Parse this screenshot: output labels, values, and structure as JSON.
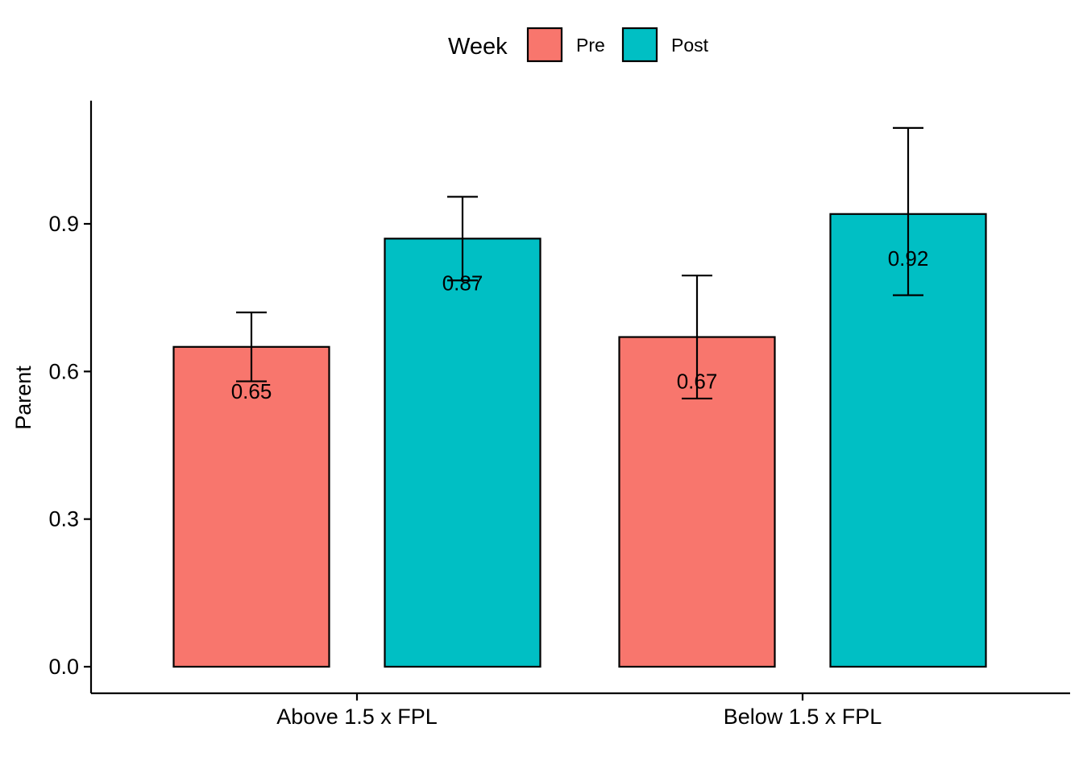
{
  "chart_data": {
    "type": "bar",
    "title": "",
    "xlabel": "",
    "ylabel": "Parent",
    "categories": [
      "Above 1.5 x FPL",
      "Below 1.5 x FPL"
    ],
    "series": [
      {
        "name": "Pre",
        "color": "#F8766D",
        "values": [
          0.65,
          0.67
        ],
        "error_low": [
          0.58,
          0.545
        ],
        "error_high": [
          0.72,
          0.795
        ],
        "labels": [
          "0.65",
          "0.67"
        ]
      },
      {
        "name": "Post",
        "color": "#00BFC4",
        "values": [
          0.87,
          0.92
        ],
        "error_low": [
          0.785,
          0.755
        ],
        "error_high": [
          0.955,
          1.095
        ],
        "labels": [
          "0.87",
          "0.92"
        ]
      }
    ],
    "ylim": [
      0,
      1.15
    ],
    "yticks": [
      "0.0",
      "0.3",
      "0.6",
      "0.9"
    ],
    "legend": {
      "title": "Week",
      "placement": "top",
      "items": [
        "Pre",
        "Post"
      ]
    },
    "grid": false,
    "colors": {
      "pre": "#F8766D",
      "post": "#00BFC4",
      "outline": "#000000"
    }
  }
}
